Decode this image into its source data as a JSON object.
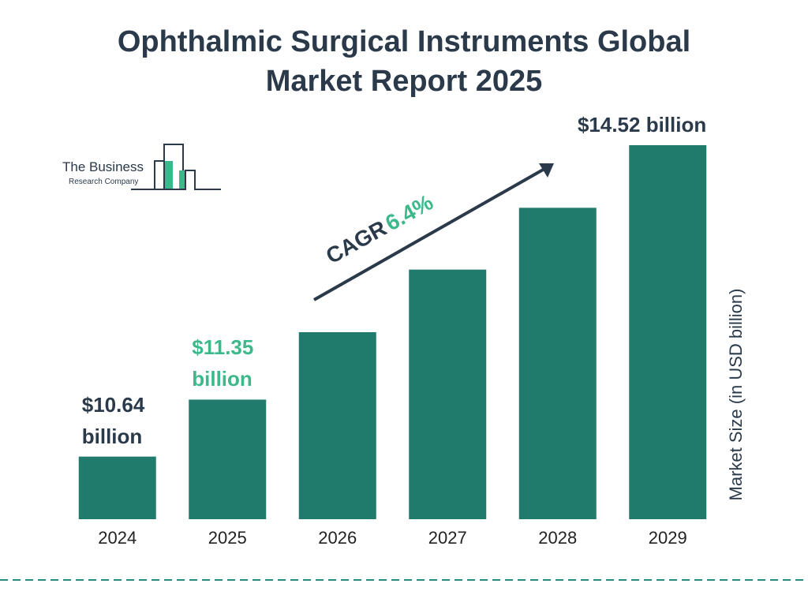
{
  "chart_data": {
    "type": "bar",
    "title": "Ophthalmic Surgical Instruments Global Market Report 2025",
    "y_axis_label": "Market Size (in USD billion)",
    "categories": [
      "2024",
      "2025",
      "2026",
      "2027",
      "2028",
      "2029"
    ],
    "values": [
      10.64,
      11.35,
      12.19,
      12.97,
      13.74,
      14.52
    ],
    "value_labels": [
      "$10.64 billion",
      "$11.35 billion",
      null,
      null,
      null,
      "$14.52 billion"
    ],
    "value_label_colors": [
      "#2b3a4a",
      "#3cb98a",
      null,
      null,
      null,
      "#2b3a4a"
    ],
    "color": "#217b6d",
    "ylim": [
      9.86,
      14.52
    ],
    "annotation": {
      "label": "CAGR",
      "value": "6.4%"
    },
    "logo": {
      "line1": "The Business",
      "line2": "Research Company"
    }
  }
}
